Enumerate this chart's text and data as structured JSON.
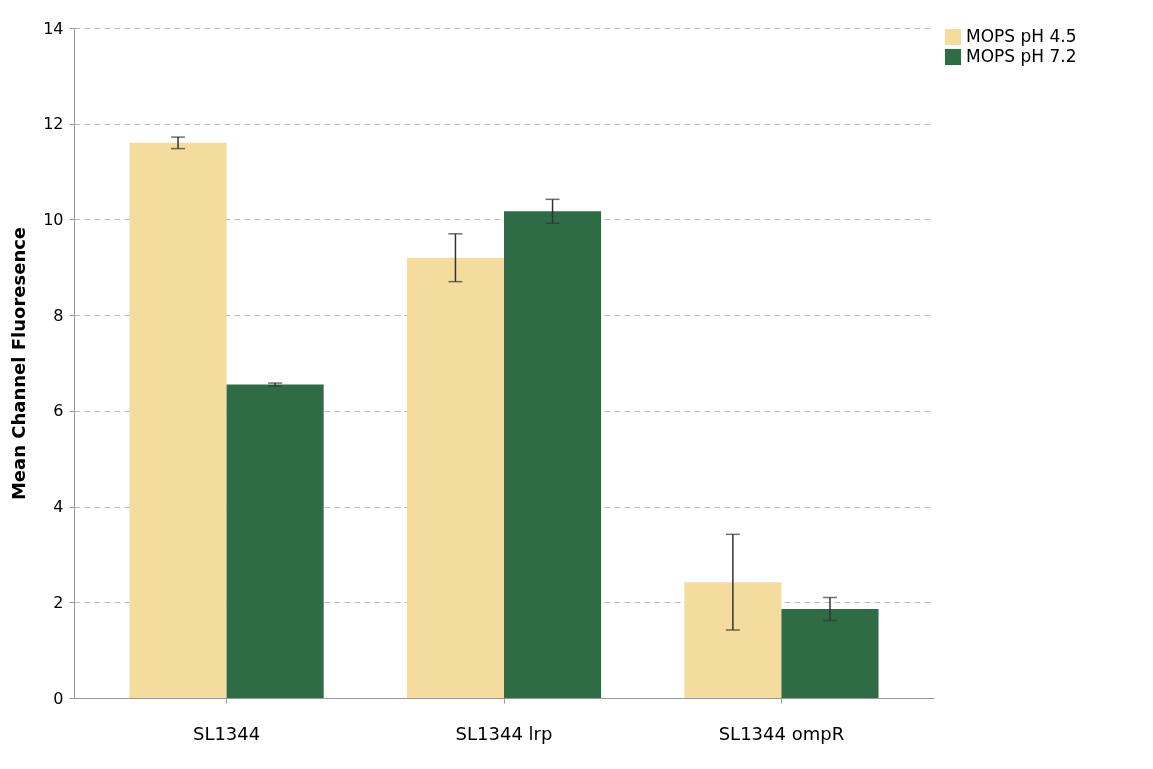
{
  "chart_data": {
    "type": "bar",
    "ylabel": "Mean Channel Fluoresence",
    "categories": [
      "SL1344",
      "SL1344 lrp",
      "SL1344 ompR"
    ],
    "series": [
      {
        "name": "MOPS pH 4.5",
        "color": "#f3dc9e",
        "values": [
          11.6,
          9.2,
          2.42
        ],
        "errors": [
          0.12,
          0.5,
          1.0
        ]
      },
      {
        "name": "MOPS pH 7.2",
        "color": "#2f6b45",
        "values": [
          6.55,
          10.17,
          1.86
        ],
        "errors": [
          0.03,
          0.25,
          0.24
        ]
      }
    ],
    "ylim": [
      0,
      14
    ],
    "yticks": [
      0,
      2,
      4,
      6,
      8,
      10,
      12,
      14
    ],
    "grid": "y",
    "legend": "right"
  }
}
